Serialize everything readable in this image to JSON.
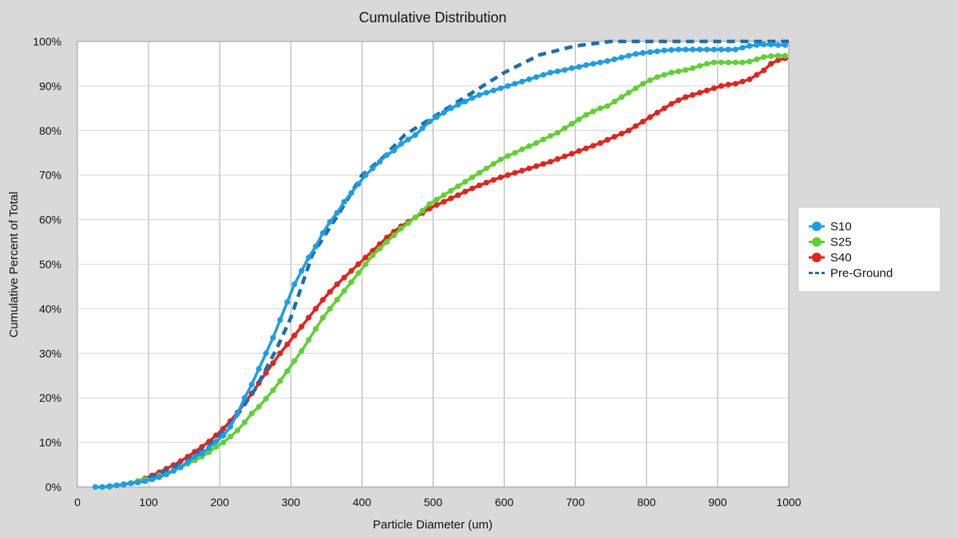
{
  "chart_data": {
    "type": "line",
    "title": "Cumulative Distribution",
    "xlabel": "Particle Diameter (um)",
    "ylabel": "Cumulative Percent of Total",
    "xlim": [
      0,
      1000
    ],
    "ylim": [
      0,
      100
    ],
    "x_ticks": [
      0,
      100,
      200,
      300,
      400,
      500,
      600,
      700,
      800,
      900,
      1000
    ],
    "y_ticks": [
      0,
      10,
      20,
      30,
      40,
      50,
      60,
      70,
      80,
      90,
      100
    ],
    "y_tick_labels": [
      "0%",
      "10%",
      "20%",
      "30%",
      "40%",
      "50%",
      "60%",
      "70%",
      "80%",
      "90%",
      "100%"
    ],
    "grid": true,
    "legend_position": "right",
    "series": [
      {
        "name": "S10",
        "color": "#1a9ee8",
        "style": "solid-markers",
        "points": [
          [
            25,
            0
          ],
          [
            35,
            0
          ],
          [
            45,
            0.2
          ],
          [
            55,
            0.4
          ],
          [
            65,
            0.6
          ],
          [
            75,
            0.8
          ],
          [
            85,
            1
          ],
          [
            95,
            1.3
          ],
          [
            105,
            1.7
          ],
          [
            115,
            2.2
          ],
          [
            125,
            2.8
          ],
          [
            135,
            3.6
          ],
          [
            145,
            4.5
          ],
          [
            155,
            5.6
          ],
          [
            165,
            6.8
          ],
          [
            175,
            7.5
          ],
          [
            185,
            8.8
          ],
          [
            195,
            10.2
          ],
          [
            205,
            11.5
          ],
          [
            215,
            13.5
          ],
          [
            225,
            16.5
          ],
          [
            235,
            20
          ],
          [
            245,
            23
          ],
          [
            255,
            26.5
          ],
          [
            265,
            30
          ],
          [
            275,
            33.5
          ],
          [
            285,
            37.5
          ],
          [
            295,
            41.5
          ],
          [
            305,
            45.5
          ],
          [
            315,
            48.5
          ],
          [
            325,
            51.5
          ],
          [
            335,
            54
          ],
          [
            345,
            57
          ],
          [
            355,
            59.5
          ],
          [
            365,
            61.5
          ],
          [
            375,
            64
          ],
          [
            385,
            66
          ],
          [
            395,
            68
          ],
          [
            405,
            70
          ],
          [
            415,
            71.5
          ],
          [
            425,
            73
          ],
          [
            435,
            74.5
          ],
          [
            445,
            75.5
          ],
          [
            455,
            77
          ],
          [
            465,
            78
          ],
          [
            475,
            79
          ],
          [
            485,
            80.5
          ],
          [
            495,
            82
          ],
          [
            505,
            83
          ],
          [
            515,
            84
          ],
          [
            525,
            85
          ],
          [
            535,
            85.8
          ],
          [
            545,
            86.5
          ],
          [
            555,
            87.3
          ],
          [
            565,
            88
          ],
          [
            575,
            88.5
          ],
          [
            585,
            89
          ],
          [
            595,
            89.5
          ],
          [
            605,
            90
          ],
          [
            615,
            90.5
          ],
          [
            625,
            91
          ],
          [
            635,
            91.5
          ],
          [
            645,
            92
          ],
          [
            655,
            92.5
          ],
          [
            665,
            93
          ],
          [
            675,
            93.3
          ],
          [
            685,
            93.6
          ],
          [
            695,
            94
          ],
          [
            705,
            94.3
          ],
          [
            715,
            94.7
          ],
          [
            725,
            95
          ],
          [
            735,
            95.3
          ],
          [
            745,
            95.6
          ],
          [
            755,
            96
          ],
          [
            765,
            96.4
          ],
          [
            775,
            96.8
          ],
          [
            785,
            97.2
          ],
          [
            795,
            97.4
          ],
          [
            805,
            97.6
          ],
          [
            815,
            97.8
          ],
          [
            825,
            98
          ],
          [
            835,
            98.1
          ],
          [
            845,
            98.2
          ],
          [
            855,
            98.2
          ],
          [
            865,
            98.2
          ],
          [
            875,
            98.2
          ],
          [
            885,
            98.2
          ],
          [
            895,
            98.2
          ],
          [
            905,
            98.2
          ],
          [
            915,
            98.2
          ],
          [
            925,
            98.2
          ],
          [
            935,
            98.6
          ],
          [
            945,
            99
          ],
          [
            955,
            99.2
          ],
          [
            965,
            99.3
          ],
          [
            975,
            99.3
          ],
          [
            985,
            99.2
          ],
          [
            995,
            99.2
          ]
        ]
      },
      {
        "name": "S25",
        "color": "#5fd133",
        "style": "solid-markers",
        "points": [
          [
            35,
            0
          ],
          [
            45,
            0
          ],
          [
            55,
            0.3
          ],
          [
            65,
            0.6
          ],
          [
            75,
            0.9
          ],
          [
            85,
            1.3
          ],
          [
            95,
            1.7
          ],
          [
            105,
            2.1
          ],
          [
            115,
            2.6
          ],
          [
            125,
            3.1
          ],
          [
            135,
            3.7
          ],
          [
            145,
            4.4
          ],
          [
            155,
            5.2
          ],
          [
            165,
            6
          ],
          [
            175,
            6.8
          ],
          [
            185,
            7.8
          ],
          [
            195,
            9
          ],
          [
            205,
            10
          ],
          [
            215,
            11.3
          ],
          [
            225,
            12.7
          ],
          [
            235,
            14.5
          ],
          [
            245,
            16.5
          ],
          [
            255,
            18
          ],
          [
            265,
            19.8
          ],
          [
            275,
            21.7
          ],
          [
            285,
            23.8
          ],
          [
            295,
            26
          ],
          [
            305,
            28.3
          ],
          [
            315,
            30.5
          ],
          [
            325,
            33
          ],
          [
            335,
            35.5
          ],
          [
            345,
            38
          ],
          [
            355,
            40
          ],
          [
            365,
            42
          ],
          [
            375,
            44
          ],
          [
            385,
            46
          ],
          [
            395,
            48
          ],
          [
            405,
            50
          ],
          [
            415,
            52
          ],
          [
            425,
            53.5
          ],
          [
            435,
            55
          ],
          [
            445,
            56.5
          ],
          [
            455,
            58
          ],
          [
            465,
            59.2
          ],
          [
            475,
            60.5
          ],
          [
            485,
            62
          ],
          [
            495,
            63.5
          ],
          [
            505,
            64.5
          ],
          [
            515,
            65.5
          ],
          [
            525,
            66.5
          ],
          [
            535,
            67.5
          ],
          [
            545,
            68.5
          ],
          [
            555,
            69.5
          ],
          [
            565,
            70.5
          ],
          [
            575,
            71.5
          ],
          [
            585,
            72.5
          ],
          [
            595,
            73.5
          ],
          [
            605,
            74.3
          ],
          [
            615,
            75
          ],
          [
            625,
            75.8
          ],
          [
            635,
            76.5
          ],
          [
            645,
            77.2
          ],
          [
            655,
            78
          ],
          [
            665,
            78.8
          ],
          [
            675,
            79.5
          ],
          [
            685,
            80.5
          ],
          [
            695,
            81.5
          ],
          [
            705,
            82.5
          ],
          [
            715,
            83.5
          ],
          [
            725,
            84.3
          ],
          [
            735,
            85
          ],
          [
            745,
            85.5
          ],
          [
            755,
            86.5
          ],
          [
            765,
            87.5
          ],
          [
            775,
            88.5
          ],
          [
            785,
            89.5
          ],
          [
            795,
            90.5
          ],
          [
            805,
            91.3
          ],
          [
            815,
            92
          ],
          [
            825,
            92.5
          ],
          [
            835,
            93
          ],
          [
            845,
            93.3
          ],
          [
            855,
            93.6
          ],
          [
            865,
            94
          ],
          [
            875,
            94.5
          ],
          [
            885,
            95
          ],
          [
            895,
            95.3
          ],
          [
            905,
            95.3
          ],
          [
            915,
            95.3
          ],
          [
            925,
            95.3
          ],
          [
            935,
            95.3
          ],
          [
            945,
            95.5
          ],
          [
            955,
            96
          ],
          [
            965,
            96.5
          ],
          [
            975,
            96.7
          ],
          [
            985,
            96.8
          ],
          [
            995,
            96.8
          ]
        ]
      },
      {
        "name": "S40",
        "color": "#e3231c",
        "style": "solid-markers",
        "points": [
          [
            65,
            0.5
          ],
          [
            75,
            0.9
          ],
          [
            85,
            1.3
          ],
          [
            95,
            1.9
          ],
          [
            105,
            2.6
          ],
          [
            115,
            3.3
          ],
          [
            125,
            4.1
          ],
          [
            135,
            4.9
          ],
          [
            145,
            5.8
          ],
          [
            155,
            6.8
          ],
          [
            165,
            7.9
          ],
          [
            175,
            9
          ],
          [
            185,
            10.2
          ],
          [
            195,
            11.6
          ],
          [
            205,
            13.1
          ],
          [
            215,
            14.8
          ],
          [
            225,
            16.7
          ],
          [
            235,
            18.8
          ],
          [
            245,
            21
          ],
          [
            255,
            23.3
          ],
          [
            265,
            25.6
          ],
          [
            275,
            27.8
          ],
          [
            285,
            30
          ],
          [
            295,
            32
          ],
          [
            305,
            34
          ],
          [
            315,
            36
          ],
          [
            325,
            38
          ],
          [
            335,
            40
          ],
          [
            345,
            42
          ],
          [
            355,
            43.8
          ],
          [
            365,
            45.5
          ],
          [
            375,
            47
          ],
          [
            385,
            48.5
          ],
          [
            395,
            50
          ],
          [
            405,
            51.5
          ],
          [
            415,
            53
          ],
          [
            425,
            54.5
          ],
          [
            435,
            56
          ],
          [
            445,
            57.3
          ],
          [
            455,
            58.5
          ],
          [
            465,
            59.5
          ],
          [
            475,
            60.5
          ],
          [
            485,
            61.5
          ],
          [
            495,
            62.5
          ],
          [
            505,
            63.3
          ],
          [
            515,
            64
          ],
          [
            525,
            64.8
          ],
          [
            535,
            65.5
          ],
          [
            545,
            66.3
          ],
          [
            555,
            67
          ],
          [
            565,
            67.7
          ],
          [
            575,
            68.3
          ],
          [
            585,
            68.9
          ],
          [
            595,
            69.5
          ],
          [
            605,
            70
          ],
          [
            615,
            70.5
          ],
          [
            625,
            71
          ],
          [
            635,
            71.5
          ],
          [
            645,
            72
          ],
          [
            655,
            72.5
          ],
          [
            665,
            73
          ],
          [
            675,
            73.6
          ],
          [
            685,
            74.2
          ],
          [
            695,
            74.8
          ],
          [
            705,
            75.4
          ],
          [
            715,
            76
          ],
          [
            725,
            76.6
          ],
          [
            735,
            77.2
          ],
          [
            745,
            77.9
          ],
          [
            755,
            78.6
          ],
          [
            765,
            79.3
          ],
          [
            775,
            80
          ],
          [
            785,
            81
          ],
          [
            795,
            82
          ],
          [
            805,
            83
          ],
          [
            815,
            84
          ],
          [
            825,
            85
          ],
          [
            835,
            86
          ],
          [
            845,
            86.8
          ],
          [
            855,
            87.5
          ],
          [
            865,
            88
          ],
          [
            875,
            88.5
          ],
          [
            885,
            89
          ],
          [
            895,
            89.5
          ],
          [
            905,
            90
          ],
          [
            915,
            90.3
          ],
          [
            925,
            90.5
          ],
          [
            935,
            91
          ],
          [
            945,
            91.5
          ],
          [
            955,
            92.5
          ],
          [
            965,
            93.5
          ],
          [
            975,
            95
          ],
          [
            985,
            95.8
          ],
          [
            995,
            96.2
          ]
        ]
      },
      {
        "name": "Pre-Ground",
        "color": "#1a6fad",
        "style": "dashed",
        "points": [
          [
            100,
            2
          ],
          [
            130,
            4
          ],
          [
            160,
            6.5
          ],
          [
            190,
            10
          ],
          [
            220,
            15
          ],
          [
            250,
            22
          ],
          [
            280,
            31
          ],
          [
            300,
            38
          ],
          [
            330,
            52
          ],
          [
            370,
            62
          ],
          [
            400,
            70
          ],
          [
            430,
            74
          ],
          [
            460,
            79
          ],
          [
            500,
            83
          ],
          [
            550,
            88
          ],
          [
            600,
            93
          ],
          [
            650,
            97
          ],
          [
            700,
            99
          ],
          [
            750,
            100
          ],
          [
            800,
            100
          ],
          [
            850,
            100
          ],
          [
            900,
            100
          ],
          [
            950,
            100
          ],
          [
            1000,
            100
          ]
        ]
      }
    ]
  }
}
